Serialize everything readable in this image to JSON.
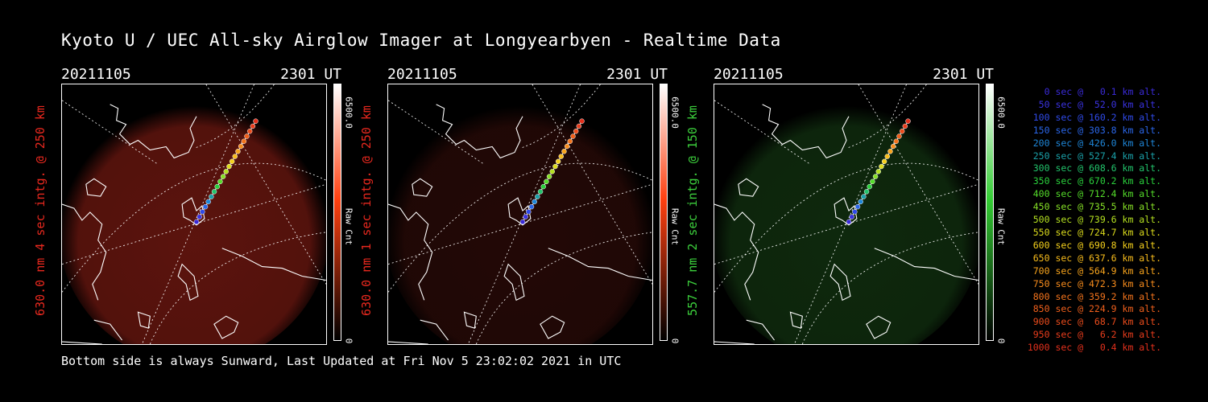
{
  "title": "Kyoto U / UEC All-sky Airglow Imager at Longyearbyen - Realtime Data",
  "footer": "Bottom side is always Sunward, Last Updated at Fri Nov  5 23:02:02 2021 in UTC",
  "panels": [
    {
      "date": "20211105",
      "time": "2301 UT",
      "ylabel": "630.0 nm 4 sec intg. @ 250 km",
      "ylabel_color": "#e8281e",
      "colorbar": {
        "max": "6500.0",
        "min": "0",
        "label": "Raw Cnt",
        "color_top": "#ffffff",
        "color_mid": "#ff4010",
        "color_bot": "#000000"
      },
      "airglow_color": "#7a1a12",
      "airglow_opacity": 0.75
    },
    {
      "date": "20211105",
      "time": "2301 UT",
      "ylabel": "630.0 nm 1 sec intg. @ 250 km",
      "ylabel_color": "#e8281e",
      "colorbar": {
        "max": "6500.0",
        "min": "0",
        "label": "Raw Cnt",
        "color_top": "#ffffff",
        "color_mid": "#ff4010",
        "color_bot": "#000000"
      },
      "airglow_color": "#3a0e0a",
      "airglow_opacity": 0.6
    },
    {
      "date": "20211105",
      "time": "2301 UT",
      "ylabel": "557.7 nm 2 sec intg. @ 150 km",
      "ylabel_color": "#3ccf3c",
      "colorbar": {
        "max": "6500.0",
        "min": "0",
        "label": "Raw Cnt",
        "color_top": "#ffffff",
        "color_mid": "#33cc33",
        "color_bot": "#000000"
      },
      "airglow_color": "#1a4a18",
      "airglow_opacity": 0.55
    }
  ],
  "trajectory_legend": [
    {
      "text": "  0 sec @   0.1 km alt.",
      "color": "#3a2ad8"
    },
    {
      "text": " 50 sec @  52.0 km alt.",
      "color": "#3a32e0"
    },
    {
      "text": "100 sec @ 160.2 km alt.",
      "color": "#2f4ae8"
    },
    {
      "text": "150 sec @ 303.8 km alt.",
      "color": "#2a66e8"
    },
    {
      "text": "200 sec @ 426.0 km alt.",
      "color": "#1e86d8"
    },
    {
      "text": "250 sec @ 527.4 km alt.",
      "color": "#1aa0a8"
    },
    {
      "text": "300 sec @ 608.6 km alt.",
      "color": "#22c46c"
    },
    {
      "text": "350 sec @ 670.2 km alt.",
      "color": "#2ad03c"
    },
    {
      "text": "400 sec @ 712.4 km alt.",
      "color": "#54dc2a"
    },
    {
      "text": "450 sec @ 735.5 km alt.",
      "color": "#86e026"
    },
    {
      "text": "500 sec @ 739.6 km alt.",
      "color": "#b4e020"
    },
    {
      "text": "550 sec @ 724.7 km alt.",
      "color": "#dcdc1c"
    },
    {
      "text": "600 sec @ 690.8 km alt.",
      "color": "#f4d01c"
    },
    {
      "text": "650 sec @ 637.6 km alt.",
      "color": "#f8bc1c"
    },
    {
      "text": "700 sec @ 564.9 km alt.",
      "color": "#f8a41c"
    },
    {
      "text": "750 sec @ 472.3 km alt.",
      "color": "#f88c1c"
    },
    {
      "text": "800 sec @ 359.2 km alt.",
      "color": "#f4741c"
    },
    {
      "text": "850 sec @ 224.9 km alt.",
      "color": "#f0601c"
    },
    {
      "text": "900 sec @  68.7 km alt.",
      "color": "#ec4c1c"
    },
    {
      "text": "950 sec @   6.2 km alt.",
      "color": "#e83c1c"
    },
    {
      "text": "1000 sec @   0.4 km alt.",
      "color": "#e4301c"
    }
  ]
}
